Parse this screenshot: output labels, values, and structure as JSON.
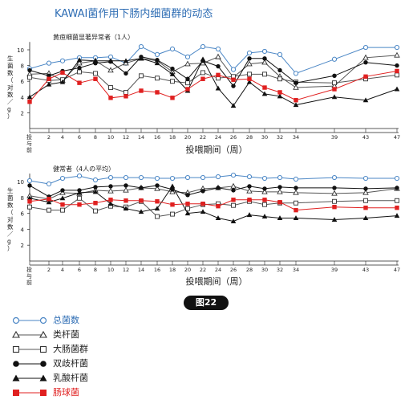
{
  "title": "KAWAI菌作用下肠内细菌群的动态",
  "figure_label": "图22",
  "colors": {
    "title": "#2e6db4",
    "total": "#4a86c5",
    "bacteroides": "#555555",
    "coliform": "#555555",
    "bifido": "#111111",
    "lacto": "#111111",
    "entero": "#e02020"
  },
  "legend": [
    {
      "key": "total",
      "label": "总菌数",
      "marker": "circle-open"
    },
    {
      "key": "bacteroides",
      "label": "类杆菌",
      "marker": "triangle-open"
    },
    {
      "key": "coliform",
      "label": "大肠菌群",
      "marker": "square-open"
    },
    {
      "key": "bifido",
      "label": "双歧杆菌",
      "marker": "circle-filled"
    },
    {
      "key": "lacto",
      "label": "乳酸杆菌",
      "marker": "triangle-filled"
    },
    {
      "key": "entero",
      "label": "肠球菌",
      "marker": "square-filled"
    }
  ],
  "chart_data": [
    {
      "type": "line",
      "subtitle": "黄疸细菌显著异常者（1人）",
      "ylabel": "生菌数（对数／g）",
      "xlabel": "投喂期间（周）",
      "x_tick_labels": [
        "投与前",
        "2",
        "4",
        "6",
        "8",
        "10",
        "12",
        "14",
        "16",
        "18",
        "20",
        "22",
        "24",
        "26",
        "28",
        "30",
        "32",
        "34",
        "39",
        "43",
        "47"
      ],
      "ylim": [
        0,
        11
      ],
      "y_ticks": [
        2,
        4,
        6,
        8,
        10
      ],
      "series": [
        {
          "key": "total",
          "name": "总菌数",
          "x": [
            "投与前",
            "2",
            "4",
            "6",
            "8",
            "10",
            "12",
            "14",
            "16",
            "18",
            "20",
            "22",
            "24",
            "26",
            "28",
            "30",
            "32",
            "34",
            "39",
            "43",
            "47"
          ],
          "values": [
            7.6,
            8.3,
            8.6,
            9.0,
            9.0,
            9.1,
            8.3,
            10.4,
            9.4,
            10.1,
            9.1,
            10.4,
            10.1,
            7.5,
            9.6,
            9.8,
            9.4,
            7.0,
            8.8,
            10.3,
            10.3
          ]
        },
        {
          "key": "bacteroides",
          "name": "类杆菌",
          "x": [
            "投与前",
            "2",
            "4",
            "6",
            "8",
            "10",
            "12",
            "14",
            "16",
            "18",
            "20",
            "22",
            "24",
            "26",
            "28",
            "30",
            "32",
            "34",
            "39",
            "43",
            "47"
          ],
          "values": [
            6.9,
            7.0,
            6.1,
            8.3,
            8.6,
            7.4,
            8.3,
            8.9,
            8.6,
            7.2,
            8.2,
            8.3,
            9.1,
            6.5,
            8.2,
            8.4,
            6.6,
            5.2,
            5.4,
            9.0,
            9.3
          ]
        },
        {
          "key": "coliform",
          "name": "大肠菌群",
          "x": [
            "投与前",
            "2",
            "4",
            "6",
            "8",
            "10",
            "12",
            "14",
            "16",
            "18",
            "20",
            "22",
            "24",
            "26",
            "28",
            "30",
            "32",
            "34",
            "39",
            "43",
            "47"
          ],
          "values": [
            6.5,
            6.1,
            6.2,
            7.2,
            7.0,
            5.2,
            4.6,
            6.7,
            6.4,
            6.0,
            5.8,
            7.1,
            6.4,
            6.6,
            6.9,
            6.9,
            6.3,
            5.9,
            5.8,
            6.3,
            6.8
          ]
        },
        {
          "key": "bifido",
          "name": "双歧杆菌",
          "x": [
            "投与前",
            "2",
            "4",
            "6",
            "8",
            "10",
            "12",
            "14",
            "16",
            "18",
            "20",
            "22",
            "24",
            "26",
            "28",
            "30",
            "32",
            "34",
            "39",
            "43",
            "47"
          ],
          "values": [
            7.4,
            6.7,
            7.3,
            7.7,
            8.3,
            8.5,
            7.0,
            9.1,
            8.7,
            7.6,
            6.3,
            8.6,
            7.9,
            5.4,
            8.9,
            8.9,
            7.4,
            5.8,
            6.7,
            8.4,
            8.0
          ]
        },
        {
          "key": "lacto",
          "name": "乳酸杆菌",
          "x": [
            "投与前",
            "2",
            "4",
            "6",
            "8",
            "10",
            "12",
            "14",
            "16",
            "18",
            "20",
            "22",
            "24",
            "26",
            "28",
            "30",
            "32",
            "34",
            "39",
            "43",
            "47"
          ],
          "values": [
            4.0,
            5.6,
            5.9,
            8.7,
            8.6,
            8.6,
            8.6,
            8.9,
            8.3,
            6.9,
            4.8,
            8.8,
            5.1,
            2.9,
            5.9,
            4.4,
            4.1,
            3.0,
            4.0,
            3.6,
            5.0
          ]
        },
        {
          "key": "entero",
          "name": "肠球菌",
          "x": [
            "投与前",
            "2",
            "4",
            "6",
            "8",
            "10",
            "12",
            "14",
            "16",
            "18",
            "20",
            "22",
            "24",
            "26",
            "28",
            "30",
            "32",
            "34",
            "39",
            "43",
            "47"
          ],
          "values": [
            3.4,
            6.3,
            7.1,
            5.8,
            6.3,
            3.9,
            4.1,
            4.8,
            4.6,
            3.9,
            5.0,
            6.3,
            6.8,
            6.2,
            6.3,
            5.2,
            4.6,
            3.6,
            5.0,
            6.6,
            7.3
          ]
        }
      ]
    },
    {
      "type": "line",
      "subtitle": "健常者（4人の平均）",
      "ylabel": "生菌数（对数／g）",
      "xlabel": "投喂期间（周）",
      "x_tick_labels": [
        "投与前",
        "2",
        "4",
        "6",
        "8",
        "10",
        "12",
        "14",
        "16",
        "18",
        "20",
        "22",
        "24",
        "26",
        "28",
        "30",
        "32",
        "34",
        "39",
        "43",
        "47"
      ],
      "ylim": [
        0,
        11
      ],
      "y_ticks": [
        2,
        4,
        6,
        8,
        10
      ],
      "series": [
        {
          "key": "total",
          "name": "总菌数",
          "x": [
            "投与前",
            "2",
            "4",
            "6",
            "8",
            "10",
            "12",
            "14",
            "16",
            "18",
            "20",
            "22",
            "24",
            "26",
            "28",
            "30",
            "32",
            "34",
            "39",
            "43",
            "47"
          ],
          "values": [
            10.1,
            9.7,
            10.4,
            10.7,
            10.2,
            10.5,
            10.5,
            10.5,
            10.4,
            10.4,
            10.5,
            10.5,
            10.6,
            10.8,
            10.6,
            10.4,
            10.5,
            10.3,
            10.5,
            10.4,
            10.4
          ]
        },
        {
          "key": "bacteroides",
          "name": "类杆菌",
          "x": [
            "投与前",
            "2",
            "4",
            "6",
            "8",
            "10",
            "12",
            "14",
            "16",
            "18",
            "20",
            "22",
            "24",
            "26",
            "28",
            "30",
            "32",
            "34",
            "39",
            "43",
            "47"
          ],
          "values": [
            8.2,
            7.8,
            8.6,
            8.5,
            8.9,
            8.8,
            8.9,
            9.2,
            9.1,
            8.7,
            8.6,
            9.1,
            9.2,
            9.4,
            8.8,
            8.7,
            8.7,
            8.6,
            8.5,
            8.6,
            9.1
          ]
        },
        {
          "key": "coliform",
          "name": "大肠菌群",
          "x": [
            "投与前",
            "2",
            "4",
            "6",
            "8",
            "10",
            "12",
            "14",
            "16",
            "18",
            "20",
            "22",
            "24",
            "26",
            "28",
            "30",
            "32",
            "34",
            "39",
            "43",
            "47"
          ],
          "values": [
            6.8,
            6.4,
            6.4,
            7.9,
            6.3,
            6.9,
            6.8,
            7.5,
            5.6,
            5.9,
            6.6,
            7.1,
            7.2,
            7.0,
            7.5,
            7.1,
            7.3,
            7.3,
            7.5,
            7.6,
            7.6
          ]
        },
        {
          "key": "bifido",
          "name": "双歧杆菌",
          "x": [
            "投与前",
            "2",
            "4",
            "6",
            "8",
            "10",
            "12",
            "14",
            "16",
            "18",
            "20",
            "22",
            "24",
            "26",
            "28",
            "30",
            "32",
            "34",
            "39",
            "43",
            "47"
          ],
          "values": [
            9.5,
            8.1,
            8.9,
            8.9,
            9.3,
            9.4,
            9.5,
            9.2,
            9.5,
            9.0,
            8.3,
            8.8,
            9.2,
            8.9,
            9.4,
            9.1,
            9.3,
            9.2,
            9.2,
            9.1,
            9.2
          ]
        },
        {
          "key": "lacto",
          "name": "乳酸杆菌",
          "x": [
            "投与前",
            "2",
            "4",
            "6",
            "8",
            "10",
            "12",
            "14",
            "16",
            "18",
            "20",
            "22",
            "24",
            "26",
            "28",
            "30",
            "32",
            "34",
            "39",
            "43",
            "47"
          ],
          "values": [
            7.9,
            7.4,
            7.9,
            8.6,
            8.7,
            7.2,
            6.6,
            6.2,
            6.6,
            9.4,
            6.0,
            6.2,
            5.4,
            5.0,
            5.8,
            5.6,
            5.4,
            5.4,
            5.2,
            5.4,
            5.7
          ]
        },
        {
          "key": "entero",
          "name": "肠球菌",
          "x": [
            "投与前",
            "2",
            "4",
            "6",
            "8",
            "10",
            "12",
            "14",
            "16",
            "18",
            "20",
            "22",
            "24",
            "26",
            "28",
            "30",
            "32",
            "34",
            "39",
            "43",
            "47"
          ],
          "values": [
            7.5,
            7.8,
            7.1,
            7.1,
            7.3,
            7.7,
            7.6,
            7.6,
            7.5,
            7.1,
            7.2,
            7.2,
            6.9,
            7.7,
            7.7,
            7.7,
            7.4,
            6.4,
            6.8,
            6.7,
            6.7
          ]
        }
      ]
    }
  ]
}
